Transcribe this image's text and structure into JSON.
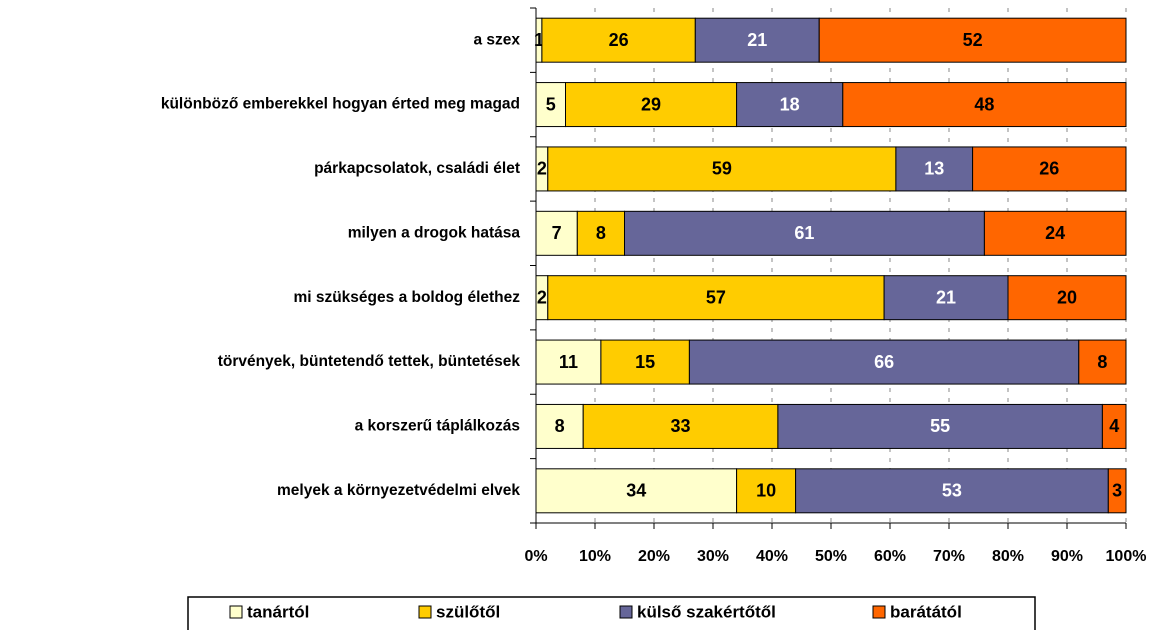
{
  "chart_data": {
    "type": "stacked-bar-horizontal",
    "categories": [
      "a szex",
      "különböző emberekkel hogyan érted meg magad",
      "párkapcsolatok, családi élet",
      "milyen a drogok hatása",
      "mi szükséges a boldog élethez",
      "törvények, büntetendő tettek, büntetések",
      "a korszerű táplálkozás",
      "melyek a környezetvédelmi elvek"
    ],
    "series": [
      {
        "name": "tanártól",
        "color": "#ffffcc",
        "values": [
          1,
          5,
          2,
          7,
          2,
          11,
          8,
          34
        ]
      },
      {
        "name": "szülőtől",
        "color": "#ffcc00",
        "values": [
          26,
          29,
          59,
          8,
          57,
          15,
          33,
          10
        ]
      },
      {
        "name": "külső szakértőtől",
        "color": "#666699",
        "values": [
          21,
          18,
          13,
          61,
          21,
          66,
          55,
          53
        ]
      },
      {
        "name": "barátától",
        "color": "#ff6600",
        "values": [
          52,
          48,
          26,
          24,
          20,
          8,
          4,
          3
        ]
      }
    ],
    "xlim": [
      0,
      100
    ],
    "xticks": [
      {
        "value": 0,
        "label": "0%"
      },
      {
        "value": 10,
        "label": "10%"
      },
      {
        "value": 20,
        "label": "20%"
      },
      {
        "value": 30,
        "label": "30%"
      },
      {
        "value": 40,
        "label": "40%"
      },
      {
        "value": 50,
        "label": "50%"
      },
      {
        "value": 60,
        "label": "60%"
      },
      {
        "value": 70,
        "label": "70%"
      },
      {
        "value": 80,
        "label": "80%"
      },
      {
        "value": 90,
        "label": "90%"
      },
      {
        "value": 100,
        "label": "100%"
      }
    ],
    "grid": true,
    "legend": "bottom"
  }
}
